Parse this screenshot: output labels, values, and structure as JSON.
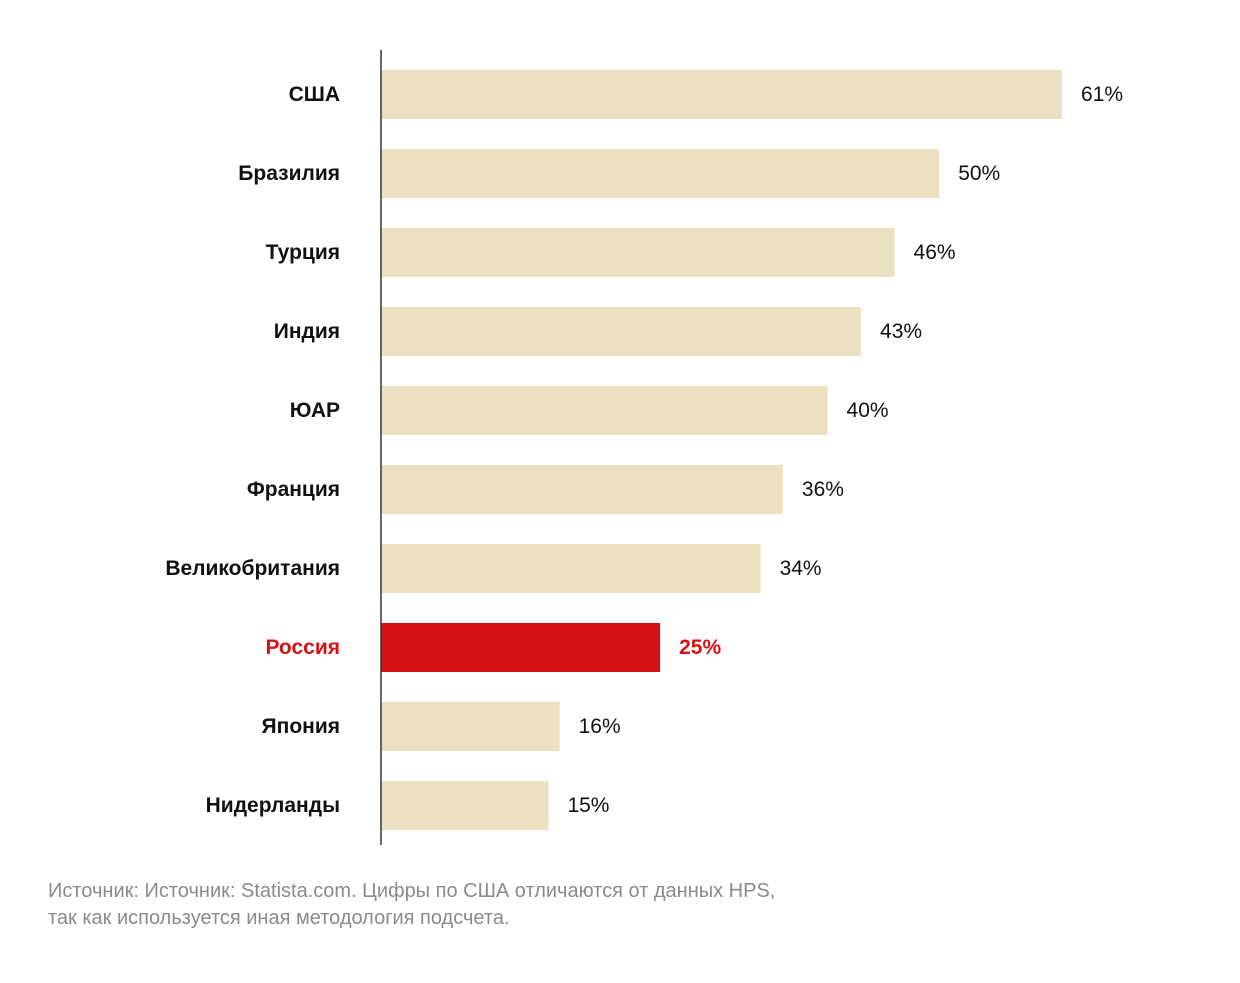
{
  "chart_data": {
    "type": "bar",
    "orientation": "horizontal",
    "categories": [
      "США",
      "Бразилия",
      "Турция",
      "Индия",
      "ЮАР",
      "Франция",
      "Великобритания",
      "Россия",
      "Япония",
      "Нидерланды"
    ],
    "values": [
      61,
      50,
      46,
      43,
      40,
      36,
      34,
      25,
      16,
      15
    ],
    "value_labels": [
      "61%",
      "50%",
      "46%",
      "43%",
      "40%",
      "36%",
      "34%",
      "25%",
      "16%",
      "15%"
    ],
    "highlight_index": 7,
    "title": "",
    "xlabel": "",
    "ylabel": "",
    "xlim": [
      0,
      65
    ],
    "grid": false,
    "legend": "none"
  },
  "colors": {
    "bar": "#ebe1c1",
    "highlight": "#d51317",
    "text": "#111111",
    "axis": "#333333"
  },
  "source": {
    "line1": "Источник: Источник: Statista.com. Цифры по США отличаются от данных HPS,",
    "line2": "так как используется иная методология подсчета."
  }
}
